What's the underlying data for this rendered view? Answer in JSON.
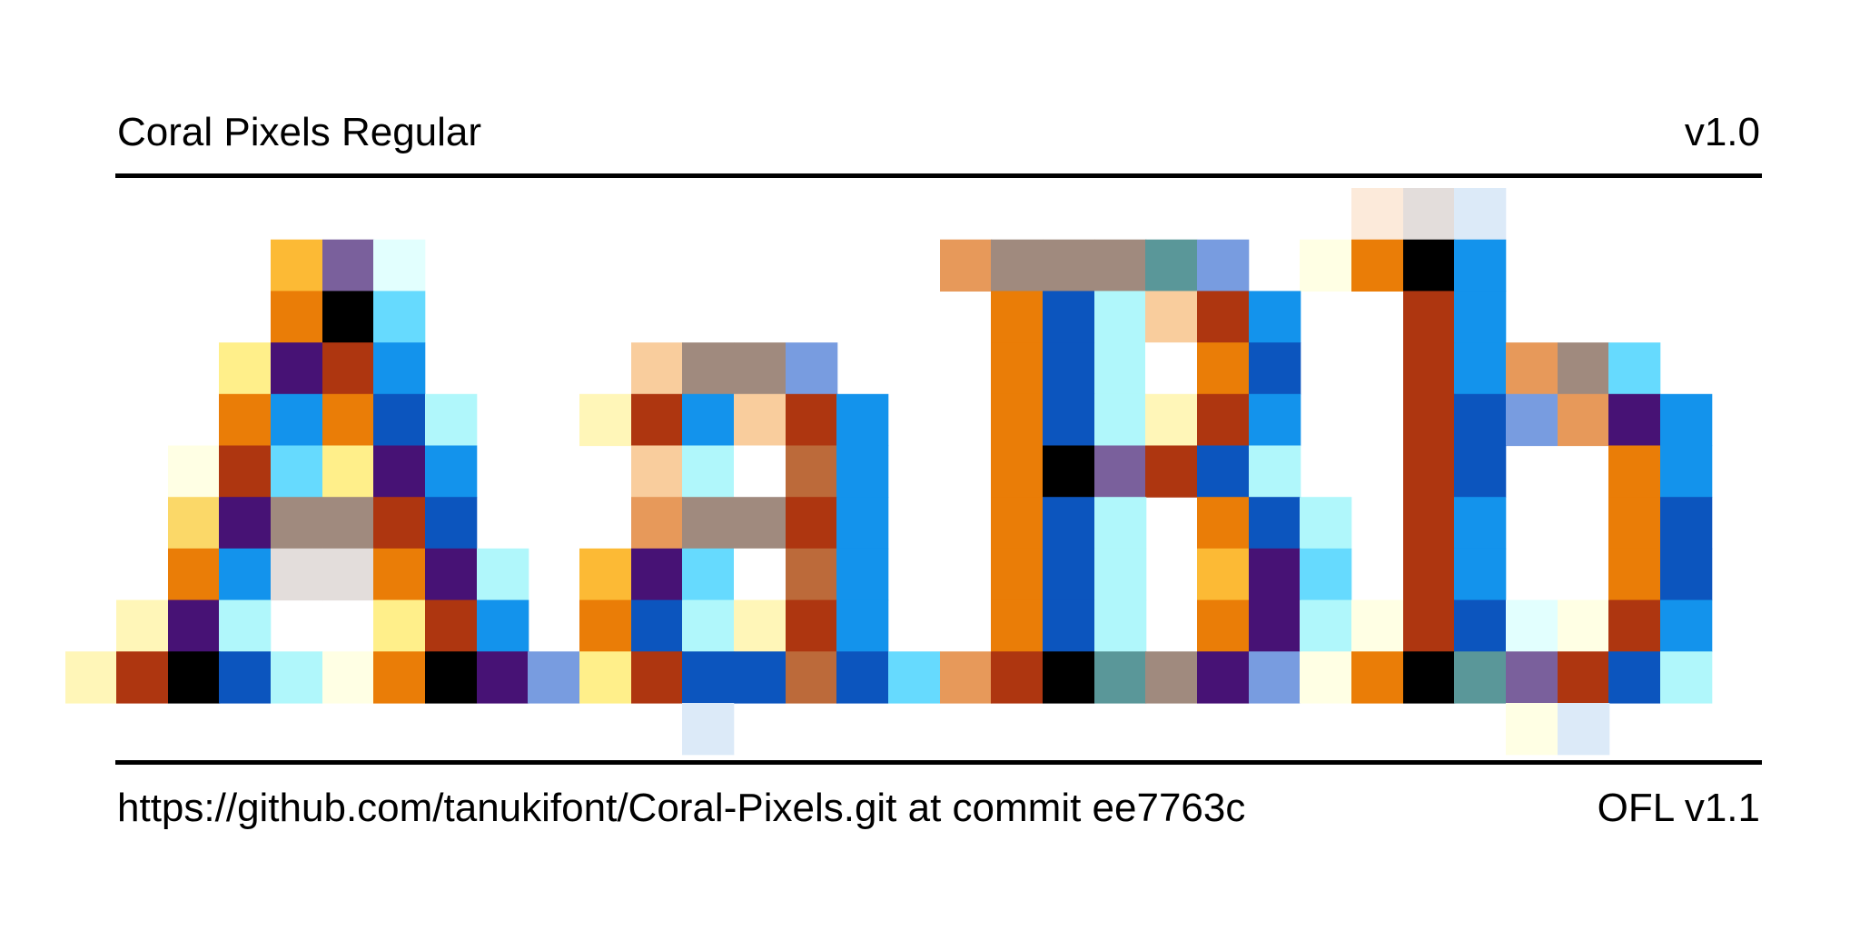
{
  "header": {
    "font_name": "Coral Pixels Regular",
    "version": "v1.0"
  },
  "footer": {
    "source": "https://github.com/tanukifont/Coral-Pixels.git at commit ee7763c",
    "license": "OFL v1.1"
  },
  "specimen": {
    "palette": {
      "o": "#EA7D07",
      "k": "#000000",
      "g": "#FFF6B8",
      "y": "#FFEF8A",
      "n": "#FCBA35",
      "h": "#FBD868",
      "p": "#471275",
      "r": "#AE3610",
      "c": "#66DAFE",
      "l": "#B0F7FB",
      "d": "#E4F6FA",
      "b": "#0C55BE",
      "m": "#1393EC",
      "t": "#A08A7E",
      "s": "#F9CD9D",
      "e": "#E7995A",
      "u": "#BC6A3A",
      "f": "#789CE0",
      "v": "#7A609C",
      "a": "#5A9799",
      "i": "#E3DDDB",
      "w": "#FFFFFF",
      "z": "#FFFFE4",
      "q": "#FCEADA",
      "x": "#DCEAF8",
      "j": "#E2FFFE"
    },
    "rows": [
      "..........................qix..",
      "....nvj.............ettaf.zokm.",
      "....okc..............obls.rm...",
      "...ypmm.....sttf.....oblwm.rmetc.",
      "...omomlg..grmsrm....obldr.rbfep m",
      "..zrcypm....slwum....okvrblrmwwom",
      "..hpttrb....ettrm....oblwob.lmwwob",
      "..omiiopl..npcwum....oblwnpc.mwwob",
      ".gplwwyrm..obldrm....oblwop.lzrbjzrm",
      "grkblzokpfyrbbubcerkatpfzokavrbl",
      "............x.........................zx"
    ]
  }
}
